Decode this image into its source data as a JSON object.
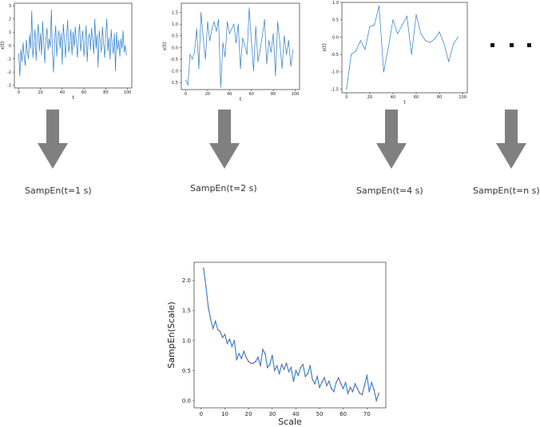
{
  "panels": [
    {
      "xlabel": "t",
      "ylabel": "x(t)",
      "xticks": [
        0,
        20,
        40,
        60,
        80,
        100
      ],
      "yticks": [
        -3,
        -2,
        -1,
        0,
        1,
        2,
        3
      ],
      "xlim": [
        -4,
        104
      ],
      "ylim": [
        -3.2,
        3.2
      ],
      "x": [
        0,
        1,
        2,
        3,
        4,
        5,
        6,
        7,
        8,
        9,
        10,
        11,
        12,
        13,
        14,
        15,
        16,
        17,
        18,
        19,
        20,
        21,
        22,
        23,
        24,
        25,
        26,
        27,
        28,
        29,
        30,
        31,
        32,
        33,
        34,
        35,
        36,
        37,
        38,
        39,
        40,
        41,
        42,
        43,
        44,
        45,
        46,
        47,
        48,
        49,
        50,
        51,
        52,
        53,
        54,
        55,
        56,
        57,
        58,
        59,
        60,
        61,
        62,
        63,
        64,
        65,
        66,
        67,
        68,
        69,
        70,
        71,
        72,
        73,
        74,
        75,
        76,
        77,
        78,
        79,
        80,
        81,
        82,
        83,
        84,
        85,
        86,
        87,
        88,
        89,
        90,
        91,
        92,
        93,
        94,
        95,
        96,
        97,
        98,
        99
      ],
      "y": [
        -0.6,
        -2.3,
        -0.3,
        -1.2,
        0.2,
        -0.8,
        -1.5,
        0.4,
        -0.5,
        -1.0,
        0.8,
        -0.2,
        2.6,
        -0.9,
        0.1,
        1.2,
        -1.1,
        0.7,
        1.6,
        -0.4,
        0.9,
        -0.7,
        1.8,
        0.2,
        -1.3,
        0.6,
        1.3,
        -0.3,
        0.5,
        -0.1,
        2.7,
        -0.6,
        -2.0,
        0.3,
        1.5,
        -0.8,
        0.6,
        1.1,
        -0.2,
        0.9,
        -1.4,
        1.6,
        0.4,
        -0.9,
        0.7,
        1.9,
        -0.5,
        0.2,
        1.2,
        -0.7,
        1.0,
        -0.1,
        1.4,
        0.3,
        -0.9,
        0.8,
        1.6,
        -0.4,
        0.5,
        1.1,
        -0.8,
        0.2,
        1.5,
        -1.2,
        0.6,
        0.9,
        -0.3,
        1.3,
        0.4,
        -0.6,
        2.0,
        -0.2,
        0.8,
        -1.6,
        1.1,
        0.3,
        -0.5,
        1.4,
        0.2,
        -0.9,
        0.7,
        2.0,
        -0.4,
        0.6,
        -1.0,
        1.2,
        0.1,
        -0.6,
        0.9,
        -1.9,
        1.0,
        -0.3,
        0.4,
        -0.8,
        0.5,
        -0.2,
        1.1,
        -0.5,
        0.0,
        -0.7
      ]
    },
    {
      "xlabel": "t",
      "ylabel": "x(t)",
      "xticks": [
        0,
        20,
        40,
        60,
        80,
        100
      ],
      "yticks": [
        -1.5,
        -1.0,
        -0.5,
        0.0,
        0.5,
        1.0,
        1.5
      ],
      "xlim": [
        -4,
        104
      ],
      "ylim": [
        -1.8,
        1.9
      ],
      "x": [
        0,
        2,
        4,
        6,
        8,
        10,
        12,
        14,
        16,
        18,
        20,
        22,
        24,
        26,
        28,
        30,
        32,
        34,
        36,
        38,
        40,
        42,
        44,
        46,
        48,
        50,
        52,
        54,
        56,
        58,
        60,
        62,
        64,
        66,
        68,
        70,
        72,
        74,
        76,
        78,
        80,
        82,
        84,
        86,
        88,
        90,
        92,
        94,
        96,
        98
      ],
      "y": [
        -1.4,
        -1.6,
        -0.3,
        -0.5,
        -0.2,
        0.8,
        -0.9,
        1.5,
        0.4,
        -0.5,
        1.1,
        0.3,
        0.8,
        1.1,
        0.7,
        1.2,
        -1.7,
        0.2,
        -0.4,
        1.1,
        0.6,
        0.8,
        1.0,
        0.2,
        1.0,
        -0.9,
        0.4,
        0.1,
        -0.3,
        1.7,
        0.3,
        -1.0,
        0.9,
        -0.6,
        -0.1,
        0.5,
        1.2,
        -0.7,
        0.3,
        -0.2,
        0.6,
        -1.2,
        1.1,
        0.2,
        -0.9,
        0.5,
        -0.3,
        0.3,
        -0.8,
        -0.1
      ]
    },
    {
      "xlabel": "t",
      "ylabel": "x(t)",
      "xticks": [
        0,
        20,
        40,
        60,
        80,
        100
      ],
      "yticks": [
        -1.5,
        -1.0,
        -0.5,
        0.0,
        0.5,
        1.0
      ],
      "xlim": [
        -4,
        104
      ],
      "ylim": [
        -1.6,
        1.0
      ],
      "x": [
        0,
        4,
        8,
        12,
        16,
        20,
        24,
        28,
        32,
        36,
        40,
        44,
        48,
        52,
        56,
        60,
        64,
        68,
        72,
        76,
        80,
        84,
        88,
        92,
        96
      ],
      "y": [
        -1.5,
        -0.5,
        -0.4,
        -0.1,
        -0.35,
        0.3,
        0.35,
        0.9,
        -1.0,
        -0.3,
        0.5,
        0.1,
        0.35,
        0.6,
        -0.5,
        0.65,
        0.1,
        -0.1,
        -0.15,
        -0.05,
        0.15,
        -0.2,
        -0.7,
        -0.2,
        0.0
      ]
    }
  ],
  "labels": [
    "SampEn(t=1 s)",
    "SampEn(t=2 s)",
    "SampEn(t=4 s)",
    "SampEn(t=n s)"
  ],
  "colors": {
    "line": "#2b7bcb",
    "arrow": "#808080",
    "marker": "#c8505a",
    "axis": "#333333"
  },
  "chart_data": {
    "type": "line",
    "xlabel": "Scale",
    "ylabel": "SampEn(Scale)",
    "xlim": [
      -3,
      78
    ],
    "ylim": [
      -0.12,
      2.3
    ],
    "xticks": [
      0,
      10,
      20,
      30,
      40,
      50,
      60,
      70
    ],
    "yticks": [
      0.0,
      0.5,
      1.0,
      1.5,
      2.0
    ],
    "x": [
      1,
      2,
      3,
      4,
      5,
      6,
      7,
      8,
      9,
      10,
      11,
      12,
      13,
      14,
      15,
      16,
      17,
      18,
      19,
      20,
      21,
      22,
      23,
      24,
      25,
      26,
      27,
      28,
      29,
      30,
      31,
      32,
      33,
      34,
      35,
      36,
      37,
      38,
      39,
      40,
      41,
      42,
      43,
      44,
      45,
      46,
      47,
      48,
      49,
      50,
      51,
      52,
      53,
      54,
      55,
      56,
      57,
      58,
      59,
      60,
      61,
      62,
      63,
      64,
      65,
      66,
      67,
      68,
      69,
      70,
      71,
      72,
      73,
      74,
      75
    ],
    "values": [
      2.2,
      1.9,
      1.55,
      1.35,
      1.2,
      1.32,
      1.18,
      1.15,
      1.05,
      1.1,
      0.95,
      1.02,
      0.9,
      1.0,
      0.68,
      0.78,
      0.7,
      0.82,
      0.72,
      0.65,
      0.62,
      0.62,
      0.65,
      0.72,
      0.58,
      0.85,
      0.78,
      0.55,
      0.6,
      0.75,
      0.5,
      0.58,
      0.45,
      0.6,
      0.52,
      0.62,
      0.48,
      0.55,
      0.32,
      0.5,
      0.42,
      0.55,
      0.6,
      0.4,
      0.45,
      0.58,
      0.35,
      0.28,
      0.4,
      0.22,
      0.3,
      0.38,
      0.25,
      0.32,
      0.2,
      0.15,
      0.3,
      0.38,
      0.28,
      0.2,
      0.3,
      0.12,
      0.22,
      0.15,
      0.28,
      0.2,
      0.12,
      0.1,
      0.25,
      0.42,
      0.15,
      0.3,
      0.18,
      0.0,
      0.12
    ],
    "grid": false
  }
}
